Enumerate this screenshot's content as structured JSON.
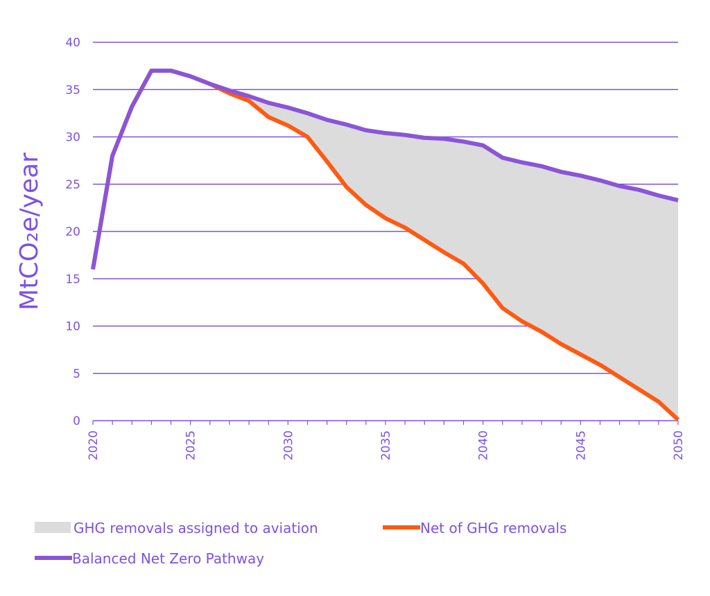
{
  "chart_data": {
    "type": "line",
    "title": "",
    "xlabel": "",
    "ylabel": "MtCO₂e/year",
    "xlim": [
      2020,
      2050
    ],
    "ylim": [
      0,
      40
    ],
    "x_ticks": [
      "2020",
      "2025",
      "2030",
      "2035",
      "2040",
      "2045",
      "2050"
    ],
    "y_ticks": [
      "0",
      "5",
      "10",
      "15",
      "20",
      "25",
      "30",
      "35",
      "40"
    ],
    "grid": true,
    "x": [
      2020,
      2021,
      2022,
      2023,
      2024,
      2025,
      2026,
      2027,
      2028,
      2029,
      2030,
      2031,
      2032,
      2033,
      2034,
      2035,
      2036,
      2037,
      2038,
      2039,
      2040,
      2041,
      2042,
      2043,
      2044,
      2045,
      2046,
      2047,
      2048,
      2049,
      2050
    ],
    "series": [
      {
        "name": "Balanced Net Zero Pathway",
        "color": "#8b55d6",
        "values": [
          16.0,
          28.0,
          33.2,
          37.0,
          37.0,
          36.4,
          35.6,
          34.9,
          34.3,
          33.6,
          33.1,
          32.5,
          31.8,
          31.3,
          30.7,
          30.4,
          30.2,
          29.9,
          29.8,
          29.5,
          29.1,
          27.8,
          27.3,
          26.9,
          26.3,
          25.9,
          25.4,
          24.8,
          24.4,
          23.8,
          23.3
        ]
      },
      {
        "name": "Net of GHG removals",
        "color": "#ff5a14",
        "values": [
          16.0,
          28.0,
          33.2,
          37.0,
          37.0,
          36.4,
          35.6,
          34.6,
          33.8,
          32.1,
          31.2,
          30.0,
          27.4,
          24.7,
          22.8,
          21.4,
          20.4,
          19.1,
          17.8,
          16.6,
          14.5,
          11.9,
          10.5,
          9.4,
          8.1,
          7.0,
          5.9,
          4.6,
          3.3,
          2.0,
          0.1
        ]
      }
    ],
    "area": {
      "name": "GHG removals assigned to aviation",
      "color": "#dcdcdc",
      "between": [
        "Balanced Net Zero Pathway",
        "Net of GHG removals"
      ]
    },
    "legend": {
      "placement": "bottom",
      "entries": [
        "GHG removals assigned to aviation",
        "Net of GHG removals",
        "Balanced Net Zero Pathway"
      ]
    },
    "colors": {
      "grid": "#7b52e6",
      "axis": "#7b52e6",
      "text": "#7b52e6"
    }
  }
}
